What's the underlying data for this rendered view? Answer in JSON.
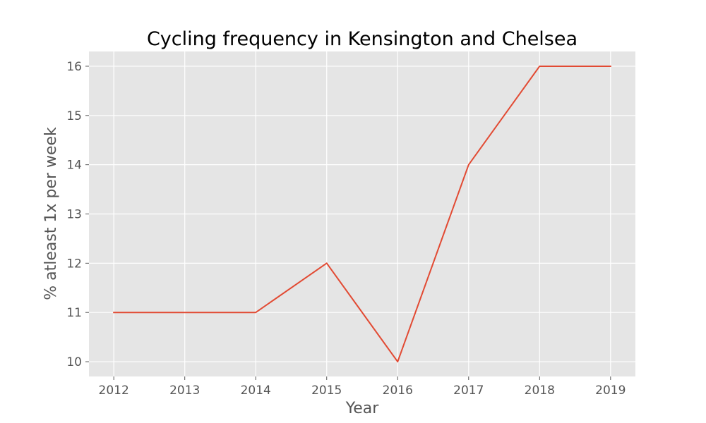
{
  "chart_data": {
    "type": "line",
    "title": "Cycling frequency in Kensington and Chelsea",
    "xlabel": "Year",
    "ylabel": "% atleast 1x per week",
    "x": [
      2012,
      2013,
      2014,
      2015,
      2016,
      2017,
      2018,
      2019
    ],
    "series": [
      {
        "values": [
          11,
          11,
          11,
          12,
          10,
          14,
          16,
          16
        ],
        "color": "#E24A33"
      }
    ],
    "xlim": [
      2011.65,
      2019.35
    ],
    "ylim": [
      9.7,
      16.3
    ],
    "x_ticks": [
      2012,
      2013,
      2014,
      2015,
      2016,
      2017,
      2018,
      2019
    ],
    "y_ticks": [
      10,
      11,
      12,
      13,
      14,
      15,
      16
    ],
    "grid": true,
    "legend": "none",
    "style": {
      "background": "#E5E5E5",
      "grid_color": "#FFFFFF",
      "text_color": "#555555",
      "title_color": "#000000"
    }
  }
}
